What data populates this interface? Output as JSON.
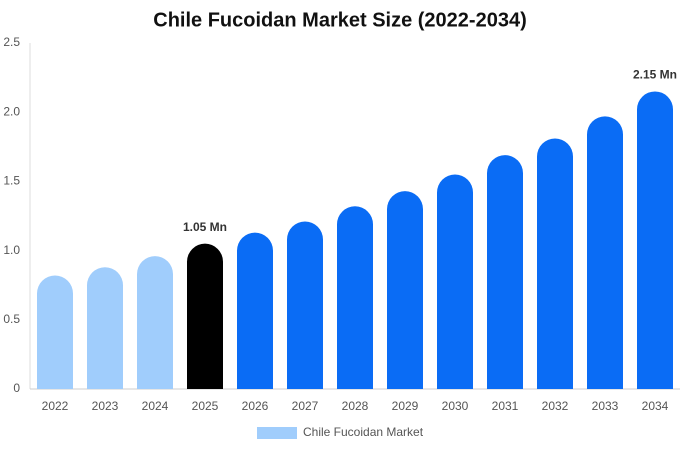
{
  "chart_data": {
    "type": "bar",
    "title": "Chile Fucoidan Market Size (2022-2034)",
    "categories": [
      "2022",
      "2023",
      "2024",
      "2025",
      "2026",
      "2027",
      "2028",
      "2029",
      "2030",
      "2031",
      "2032",
      "2033",
      "2034"
    ],
    "series": [
      {
        "name": "Chile Fucoidan Market",
        "color": "#a0cdfc",
        "values": [
          0.82,
          0.88,
          0.96,
          1.05,
          1.13,
          1.21,
          1.32,
          1.43,
          1.55,
          1.69,
          1.81,
          1.97,
          2.15
        ],
        "value_labels": [
          null,
          null,
          null,
          "1.05 Mn",
          null,
          null,
          null,
          null,
          null,
          null,
          null,
          null,
          "2.15 Mn"
        ],
        "bar_colors": [
          "#a0cdfc",
          "#a0cdfc",
          "#a0cdfc",
          "#000000",
          "#0a6cf5",
          "#0a6cf5",
          "#0a6cf5",
          "#0a6cf5",
          "#0a6cf5",
          "#0a6cf5",
          "#0a6cf5",
          "#0a6cf5",
          "#0a6cf5"
        ]
      }
    ],
    "ylim": [
      0,
      2.5
    ],
    "yticks": [
      0,
      0.5,
      {
        "value": 1,
        "label": "1.0"
      },
      1.5,
      {
        "value": 2,
        "label": "2.0"
      },
      2.5
    ],
    "grid": false,
    "legend": "bottom"
  }
}
